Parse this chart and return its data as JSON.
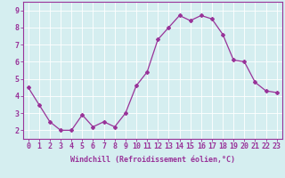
{
  "x": [
    0,
    1,
    2,
    3,
    4,
    5,
    6,
    7,
    8,
    9,
    10,
    11,
    12,
    13,
    14,
    15,
    16,
    17,
    18,
    19,
    20,
    21,
    22,
    23
  ],
  "y": [
    4.5,
    3.5,
    2.5,
    2.0,
    2.0,
    2.9,
    2.2,
    2.5,
    2.2,
    3.0,
    4.6,
    5.4,
    7.3,
    8.0,
    8.7,
    8.4,
    8.7,
    8.5,
    7.6,
    6.1,
    6.0,
    4.8,
    4.3,
    4.2
  ],
  "line_color": "#993399",
  "marker": "D",
  "marker_size": 2.0,
  "line_width": 0.9,
  "xlabel": "Windchill (Refroidissement éolien,°C)",
  "xlabel_fontsize": 6.0,
  "tick_fontsize": 6.0,
  "ylim": [
    1.5,
    9.5
  ],
  "yticks": [
    2,
    3,
    4,
    5,
    6,
    7,
    8,
    9
  ],
  "xlim": [
    -0.5,
    23.5
  ],
  "xticks": [
    0,
    1,
    2,
    3,
    4,
    5,
    6,
    7,
    8,
    9,
    10,
    11,
    12,
    13,
    14,
    15,
    16,
    17,
    18,
    19,
    20,
    21,
    22,
    23
  ],
  "background_color": "#d5eef0",
  "grid_color": "#ffffff",
  "spine_color": "#993399",
  "tick_color": "#993399",
  "label_color": "#993399"
}
